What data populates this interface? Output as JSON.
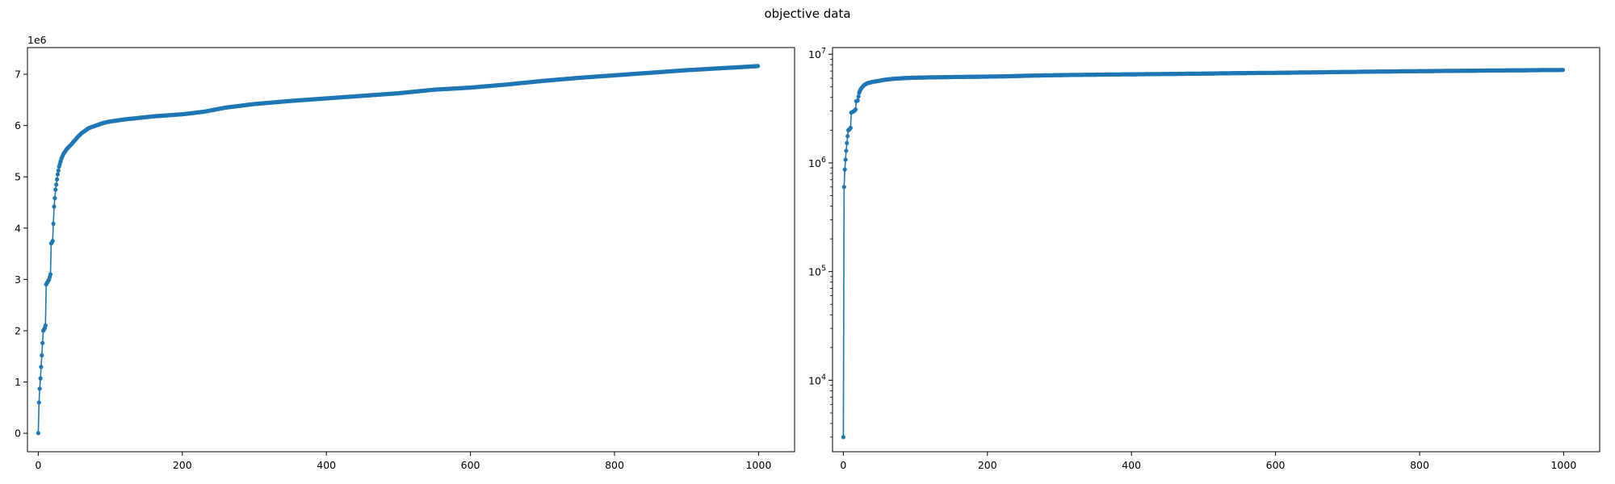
{
  "figure": {
    "title": "objective data"
  },
  "colors": {
    "series": "#1f77b4",
    "axes": "#000000",
    "background": "#ffffff"
  },
  "chart_data": [
    {
      "type": "line",
      "yscale": "linear",
      "title": "",
      "xlabel": "",
      "ylabel": "",
      "xlim": [
        -15,
        1050
      ],
      "ylim": [
        -0.36,
        7.52
      ],
      "y_offset_label": "1e6",
      "xticks": [
        0,
        200,
        400,
        600,
        800,
        1000
      ],
      "xtick_labels": [
        "0",
        "200",
        "400",
        "600",
        "800",
        "1000"
      ],
      "yticks": [
        0,
        1,
        2,
        3,
        4,
        5,
        6,
        7
      ],
      "ytick_labels": [
        "0",
        "1",
        "2",
        "3",
        "4",
        "5",
        "6",
        "7"
      ],
      "grid": false,
      "marker": "dot",
      "anchors": {
        "x": [
          0,
          1,
          2,
          3,
          5,
          7,
          9,
          10,
          11,
          12,
          13,
          15,
          17,
          18,
          20,
          22,
          24,
          25,
          27,
          29,
          32,
          35,
          40,
          45,
          50,
          55,
          60,
          65,
          70,
          80,
          90,
          100,
          110,
          120,
          140,
          160,
          180,
          200,
          230,
          260,
          300,
          350,
          400,
          450,
          500,
          550,
          600,
          650,
          700,
          750,
          800,
          850,
          900,
          950,
          1000
        ],
        "y": [
          0.003,
          0.6,
          0.87,
          1.07,
          1.52,
          2.0,
          2.05,
          2.1,
          2.9,
          2.93,
          2.95,
          3.0,
          3.1,
          3.7,
          3.75,
          4.42,
          4.75,
          4.85,
          5.05,
          5.2,
          5.35,
          5.45,
          5.55,
          5.62,
          5.7,
          5.78,
          5.85,
          5.9,
          5.95,
          6.0,
          6.05,
          6.08,
          6.1,
          6.12,
          6.15,
          6.18,
          6.2,
          6.22,
          6.27,
          6.35,
          6.42,
          6.48,
          6.53,
          6.58,
          6.63,
          6.7,
          6.74,
          6.8,
          6.87,
          6.93,
          6.98,
          7.03,
          7.08,
          7.12,
          7.16
        ]
      }
    },
    {
      "type": "line",
      "yscale": "log",
      "title": "",
      "xlabel": "",
      "ylabel": "",
      "xlim": [
        -15,
        1050
      ],
      "ylim": [
        2200,
        11500000
      ],
      "xticks": [
        0,
        200,
        400,
        600,
        800,
        1000
      ],
      "xtick_labels": [
        "0",
        "200",
        "400",
        "600",
        "800",
        "1000"
      ],
      "yticks": [
        10000,
        100000,
        1000000,
        10000000
      ],
      "ytick_labels": [
        [
          "10",
          "4"
        ],
        [
          "10",
          "5"
        ],
        [
          "10",
          "6"
        ],
        [
          "10",
          "7"
        ]
      ],
      "grid": false,
      "marker": "dot",
      "same_data_as": 0
    }
  ]
}
